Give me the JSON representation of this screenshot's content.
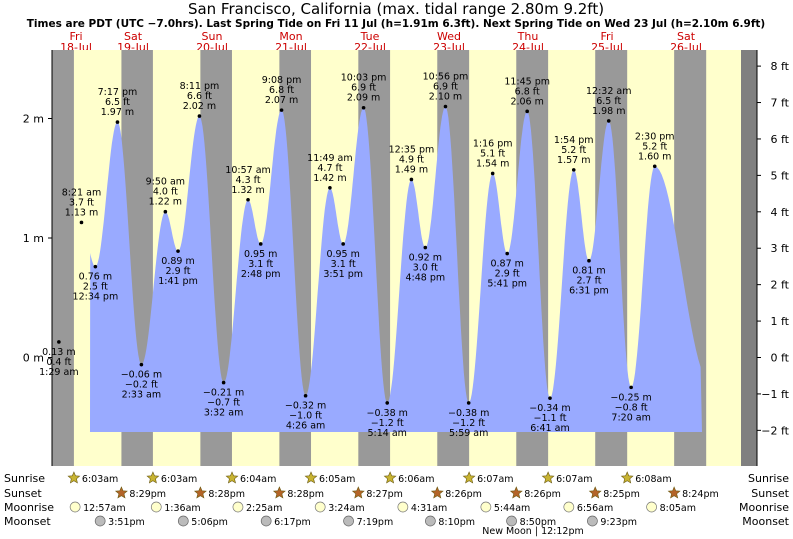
{
  "title": "San Francisco, California (max. tidal range 2.80m 9.2ft)",
  "subtitle": "Times are PDT (UTC −7.0hrs). Last Spring Tide on Fri 11 Jul (h=1.91m 6.3ft). Next Spring Tide on Wed 23 Jul (h=2.10m 6.9ft)",
  "chart_data": {
    "type": "area",
    "y_axis_left": {
      "unit": "m",
      "ylim": [
        -0.6,
        2.5
      ],
      "ticks": [
        {
          "v": 0,
          "label": "0 m"
        },
        {
          "v": 1,
          "label": "1 m"
        },
        {
          "v": 2,
          "label": "2 m"
        }
      ]
    },
    "y_axis_right": {
      "unit": "ft",
      "ticks": [
        "−2 ft",
        "−1 ft",
        "0 ft",
        "1 ft",
        "2 ft",
        "3 ft",
        "4 ft",
        "5 ft",
        "6 ft",
        "7 ft",
        "8 ft"
      ]
    },
    "days": [
      {
        "wd": "Fri",
        "date": "18-Jul",
        "day": 0
      },
      {
        "wd": "Sat",
        "date": "19-Jul",
        "day": 1
      },
      {
        "wd": "Sun",
        "date": "20-Jul",
        "day": 2
      },
      {
        "wd": "Mon",
        "date": "21-Jul",
        "day": 3
      },
      {
        "wd": "Tue",
        "date": "22-Jul",
        "day": 4
      },
      {
        "wd": "Wed",
        "date": "23-Jul",
        "day": 5
      },
      {
        "wd": "Thu",
        "date": "24-Jul",
        "day": 6
      },
      {
        "wd": "Fri",
        "date": "25-Jul",
        "day": 7
      },
      {
        "wd": "Sat",
        "date": "26-Jul",
        "day": 8
      }
    ],
    "daylight": [
      {
        "day": 0,
        "sunrise": "6:03am",
        "sunset": "8:29pm"
      },
      {
        "day": 1,
        "sunrise": "6:03am",
        "sunset": "8:28pm"
      },
      {
        "day": 2,
        "sunrise": "6:04am",
        "sunset": "8:28pm"
      },
      {
        "day": 3,
        "sunrise": "6:05am",
        "sunset": "8:27pm"
      },
      {
        "day": 4,
        "sunrise": "6:06am",
        "sunset": "8:26pm"
      },
      {
        "day": 5,
        "sunrise": "6:07am",
        "sunset": "8:26pm"
      },
      {
        "day": 6,
        "sunrise": "6:07am",
        "sunset": "8:25pm"
      },
      {
        "day": 7,
        "sunrise": "6:08am",
        "sunset": "8:24pm"
      }
    ],
    "tides": [
      {
        "time": "1:29 am",
        "day": 0,
        "hour": 1.48,
        "m": 0.13,
        "ft": "0.4 ft",
        "type": "low"
      },
      {
        "time": "8:21 am",
        "day": 0,
        "hour": 8.35,
        "m": 1.13,
        "ft": "3.7 ft",
        "type": "high"
      },
      {
        "time": "12:34 pm",
        "day": 0,
        "hour": 12.57,
        "m": 0.76,
        "ft": "2.5 ft",
        "type": "low"
      },
      {
        "time": "7:17 pm",
        "day": 0,
        "hour": 19.28,
        "m": 1.97,
        "ft": "6.5 ft",
        "type": "high"
      },
      {
        "time": "2:33 am",
        "day": 1,
        "hour": 2.55,
        "m": -0.06,
        "ft": "−0.2 ft",
        "type": "low"
      },
      {
        "time": "9:50 am",
        "day": 1,
        "hour": 9.83,
        "m": 1.22,
        "ft": "4.0 ft",
        "type": "high"
      },
      {
        "time": "1:41 pm",
        "day": 1,
        "hour": 13.68,
        "m": 0.89,
        "ft": "2.9 ft",
        "type": "low"
      },
      {
        "time": "8:11 pm",
        "day": 1,
        "hour": 20.18,
        "m": 2.02,
        "ft": "6.6 ft",
        "type": "high"
      },
      {
        "time": "3:32 am",
        "day": 2,
        "hour": 3.53,
        "m": -0.21,
        "ft": "−0.7 ft",
        "type": "low"
      },
      {
        "time": "10:57 am",
        "day": 2,
        "hour": 10.95,
        "m": 1.32,
        "ft": "4.3 ft",
        "type": "high"
      },
      {
        "time": "2:48 pm",
        "day": 2,
        "hour": 14.8,
        "m": 0.95,
        "ft": "3.1 ft",
        "type": "low"
      },
      {
        "time": "9:08 pm",
        "day": 2,
        "hour": 21.13,
        "m": 2.07,
        "ft": "6.8 ft",
        "type": "high"
      },
      {
        "time": "4:26 am",
        "day": 3,
        "hour": 4.43,
        "m": -0.32,
        "ft": "−1.0 ft",
        "type": "low"
      },
      {
        "time": "11:49 am",
        "day": 3,
        "hour": 11.82,
        "m": 1.42,
        "ft": "4.7 ft",
        "type": "high"
      },
      {
        "time": "3:51 pm",
        "day": 3,
        "hour": 15.85,
        "m": 0.95,
        "ft": "3.1 ft",
        "type": "low"
      },
      {
        "time": "10:03 pm",
        "day": 3,
        "hour": 22.05,
        "m": 2.09,
        "ft": "6.9 ft",
        "type": "high"
      },
      {
        "time": "5:14 am",
        "day": 4,
        "hour": 5.23,
        "m": -0.38,
        "ft": "−1.2 ft",
        "type": "low"
      },
      {
        "time": "12:35 pm",
        "day": 4,
        "hour": 12.58,
        "m": 1.49,
        "ft": "4.9 ft",
        "type": "high"
      },
      {
        "time": "4:48 pm",
        "day": 4,
        "hour": 16.8,
        "m": 0.92,
        "ft": "3.0 ft",
        "type": "low"
      },
      {
        "time": "10:56 pm",
        "day": 4,
        "hour": 22.93,
        "m": 2.1,
        "ft": "6.9 ft",
        "type": "high"
      },
      {
        "time": "5:59 am",
        "day": 5,
        "hour": 5.98,
        "m": -0.38,
        "ft": "−1.2 ft",
        "type": "low"
      },
      {
        "time": "1:16 pm",
        "day": 5,
        "hour": 13.27,
        "m": 1.54,
        "ft": "5.1 ft",
        "type": "high"
      },
      {
        "time": "5:41 pm",
        "day": 5,
        "hour": 17.68,
        "m": 0.87,
        "ft": "2.9 ft",
        "type": "low"
      },
      {
        "time": "11:45 pm",
        "day": 5,
        "hour": 23.75,
        "m": 2.06,
        "ft": "6.8 ft",
        "type": "high"
      },
      {
        "time": "6:41 am",
        "day": 6,
        "hour": 6.68,
        "m": -0.34,
        "ft": "−1.1 ft",
        "type": "low"
      },
      {
        "time": "1:54 pm",
        "day": 6,
        "hour": 13.9,
        "m": 1.57,
        "ft": "5.2 ft",
        "type": "high"
      },
      {
        "time": "6:31 pm",
        "day": 6,
        "hour": 18.52,
        "m": 0.81,
        "ft": "2.7 ft",
        "type": "low"
      },
      {
        "time": "12:32 am",
        "day": 7,
        "hour": 0.53,
        "m": 1.98,
        "ft": "6.5 ft",
        "type": "high"
      },
      {
        "time": "7:20 am",
        "day": 7,
        "hour": 7.33,
        "m": -0.25,
        "ft": "−0.8 ft",
        "type": "low"
      },
      {
        "time": "2:30 pm",
        "day": 7,
        "hour": 14.5,
        "m": 1.6,
        "ft": "5.2 ft",
        "type": "high"
      }
    ],
    "moonrise": [
      {
        "day": 0,
        "time": "12:57am"
      },
      {
        "day": 1,
        "time": "1:36am"
      },
      {
        "day": 2,
        "time": "2:25am"
      },
      {
        "day": 3,
        "time": "3:24am"
      },
      {
        "day": 4,
        "time": "4:31am"
      },
      {
        "day": 5,
        "time": "5:44am"
      },
      {
        "day": 6,
        "time": "6:56am"
      },
      {
        "day": 7,
        "time": "8:05am"
      }
    ],
    "moonset": [
      {
        "day": 0,
        "time": "3:51pm"
      },
      {
        "day": 1,
        "time": "5:06pm"
      },
      {
        "day": 2,
        "time": "6:17pm"
      },
      {
        "day": 3,
        "time": "7:19pm"
      },
      {
        "day": 4,
        "time": "8:10pm"
      },
      {
        "day": 5,
        "time": "8:50pm"
      },
      {
        "day": 6,
        "time": "9:23pm"
      }
    ],
    "moon_phase": {
      "text": "New Moon | 12:12pm",
      "day": 5
    },
    "row_labels": {
      "sunrise": "Sunrise",
      "sunset": "Sunset",
      "moonrise": "Moonrise",
      "moonset": "Moonset"
    }
  },
  "colors": {
    "daylight": "#ffffcc",
    "night": "#999999",
    "water": "#99aaff",
    "sidebar": "#808080",
    "day_label": "#cc0000",
    "sunrise_star": "#c8b432",
    "sunset_star": "#b46428",
    "moonrise_disc": "#ffffcc",
    "moonset_disc": "#bbbbbb"
  }
}
